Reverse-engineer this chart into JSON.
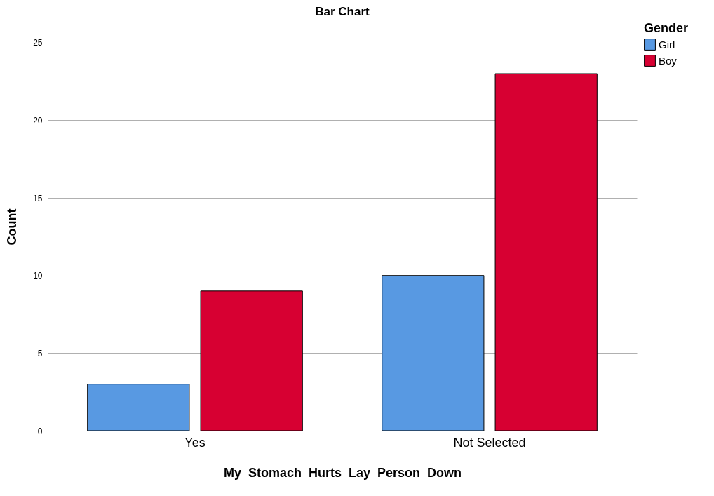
{
  "chart_data": {
    "type": "bar",
    "title": "Bar Chart",
    "xlabel": "My_Stomach_Hurts_Lay_Person_Down",
    "ylabel": "Count",
    "legend_title": "Gender",
    "categories": [
      "Yes",
      "Not Selected"
    ],
    "series": [
      {
        "name": "Girl",
        "color": "#5899e2",
        "values": [
          3,
          10
        ]
      },
      {
        "name": "Boy",
        "color": "#d70032",
        "values": [
          9,
          23
        ]
      }
    ],
    "ylim": [
      0,
      26.3
    ],
    "yticks": [
      0,
      5,
      10,
      15,
      20,
      25
    ],
    "grid": "y",
    "legend": "right"
  }
}
